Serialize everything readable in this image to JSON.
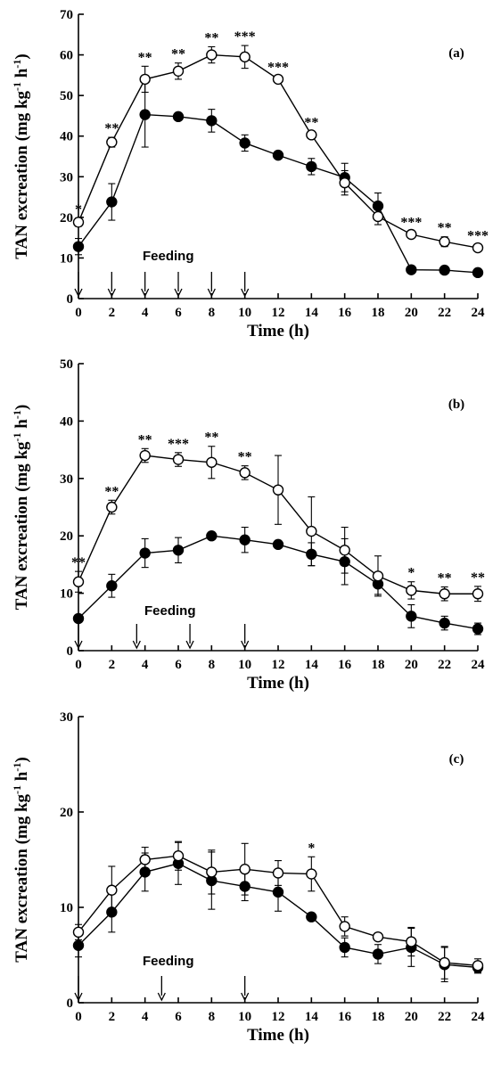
{
  "chart_data": [
    {
      "type": "line",
      "panel_label": "(a)",
      "xlabel": "Time (h)",
      "ylabel": "TAN excreation (mg kg-1 h-1)",
      "ylabel_base": "TAN excreation (mg kg",
      "ylabel_sup1": "-1",
      "ylabel_mid": " h",
      "ylabel_sup2": "-1",
      "ylabel_end": ")",
      "xlim": [
        0,
        24
      ],
      "ylim": [
        0,
        70
      ],
      "xticks": [
        0,
        2,
        4,
        6,
        8,
        10,
        12,
        14,
        16,
        18,
        20,
        22,
        24
      ],
      "yticks": [
        0,
        10,
        20,
        30,
        40,
        50,
        60,
        70
      ],
      "x": [
        0,
        2,
        4,
        6,
        8,
        10,
        12,
        14,
        16,
        18,
        20,
        22,
        24
      ],
      "series": [
        {
          "marker": "open-circle",
          "values": [
            18.8,
            38.5,
            54,
            56,
            60,
            59.5,
            54,
            40.3,
            28.5,
            20.2,
            15.8,
            14,
            12.5
          ],
          "errors": [
            1,
            1.2,
            3.2,
            2,
            2,
            2.8,
            0.8,
            0.8,
            3,
            2,
            0.8,
            1.2,
            0.8
          ]
        },
        {
          "marker": "filled-circle",
          "values": [
            12.8,
            23.8,
            45.3,
            44.8,
            43.8,
            38.3,
            35.3,
            32.5,
            29.8,
            22.8,
            7.1,
            7,
            6.4
          ],
          "errors": [
            2,
            4.5,
            8,
            0.8,
            2.8,
            2,
            0.8,
            2,
            3.5,
            3.2,
            0.5,
            0.5,
            0.5
          ]
        }
      ],
      "significance": [
        "*",
        "**",
        "**",
        "**",
        "**",
        "***",
        "***",
        "**",
        "",
        "",
        "***",
        "**",
        "***"
      ],
      "feeding_label": "Feeding",
      "feeding_times": [
        0,
        2,
        4,
        6,
        8,
        10
      ]
    },
    {
      "type": "line",
      "panel_label": "(b)",
      "xlabel": "Time (h)",
      "ylabel": "TAN excreation (mg kg-1 h-1)",
      "ylabel_base": "TAN excreation (mg kg",
      "ylabel_sup1": "-1",
      "ylabel_mid": " h",
      "ylabel_sup2": "-1",
      "ylabel_end": ")",
      "xlim": [
        0,
        24
      ],
      "ylim": [
        0,
        50
      ],
      "xticks": [
        0,
        2,
        4,
        6,
        8,
        10,
        12,
        14,
        16,
        18,
        20,
        22,
        24
      ],
      "yticks": [
        0,
        10,
        20,
        30,
        40,
        50
      ],
      "x": [
        0,
        2,
        4,
        6,
        8,
        10,
        12,
        14,
        16,
        18,
        20,
        22,
        24
      ],
      "series": [
        {
          "marker": "open-circle",
          "values": [
            12,
            25,
            34,
            33.3,
            32.8,
            31,
            28,
            20.8,
            17.5,
            13,
            10.5,
            9.9,
            9.9
          ],
          "errors": [
            1.8,
            1.2,
            1.2,
            1.2,
            2.8,
            1.2,
            6,
            6,
            4,
            3.5,
            1.5,
            1.2,
            1.3
          ]
        },
        {
          "marker": "filled-circle",
          "values": [
            5.6,
            11.3,
            17,
            17.5,
            20,
            19.3,
            18.5,
            16.8,
            15.5,
            11.6,
            6,
            4.8,
            3.8
          ],
          "errors": [
            0.6,
            2,
            2.5,
            2.2,
            0.6,
            2.2,
            0.6,
            2,
            4,
            1.8,
            2,
            1.2,
            1
          ]
        }
      ],
      "significance": [
        "**",
        "**",
        "**",
        "***",
        "**",
        "**",
        "",
        "",
        "",
        "",
        "*",
        "**",
        "**"
      ],
      "feeding_label": "Feeding",
      "feeding_times": [
        0,
        3.5,
        6.7,
        10
      ]
    },
    {
      "type": "line",
      "panel_label": "(c)",
      "xlabel": "Time (h)",
      "ylabel": "TAN excreation (mg kg-1 h-1)",
      "ylabel_base": "TAN excreation (mg kg",
      "ylabel_sup1": "-1",
      "ylabel_mid": " h",
      "ylabel_sup2": "-1",
      "ylabel_end": ")",
      "xlim": [
        0,
        24
      ],
      "ylim": [
        0,
        30
      ],
      "xticks": [
        0,
        2,
        4,
        6,
        8,
        10,
        12,
        14,
        16,
        18,
        20,
        22,
        24
      ],
      "yticks": [
        0,
        10,
        20,
        30
      ],
      "x": [
        0,
        2,
        4,
        6,
        8,
        10,
        12,
        14,
        16,
        18,
        20,
        22,
        24
      ],
      "series": [
        {
          "marker": "open-circle",
          "values": [
            7.4,
            11.8,
            15,
            15.4,
            13.7,
            14,
            13.6,
            13.5,
            8,
            6.9,
            6.4,
            4.2,
            3.9
          ],
          "errors": [
            0.8,
            2.5,
            1.3,
            1.5,
            2.3,
            2.7,
            1.3,
            1.8,
            1,
            0.4,
            1.5,
            1.7,
            0.7
          ]
        },
        {
          "marker": "filled-circle",
          "values": [
            6,
            9.5,
            13.7,
            14.6,
            12.8,
            12.2,
            11.6,
            9,
            5.8,
            5.1,
            5.8,
            4,
            3.7
          ],
          "errors": [
            1.2,
            2.1,
            2,
            2.2,
            3,
            1.5,
            2,
            0.3,
            1,
            1,
            2,
            1.8,
            0.6
          ]
        }
      ],
      "significance": [
        "",
        "",
        "",
        "",
        "",
        "",
        "",
        "*",
        "",
        "",
        "",
        "",
        ""
      ],
      "feeding_label": "Feeding",
      "feeding_times": [
        0,
        5,
        10
      ]
    }
  ]
}
